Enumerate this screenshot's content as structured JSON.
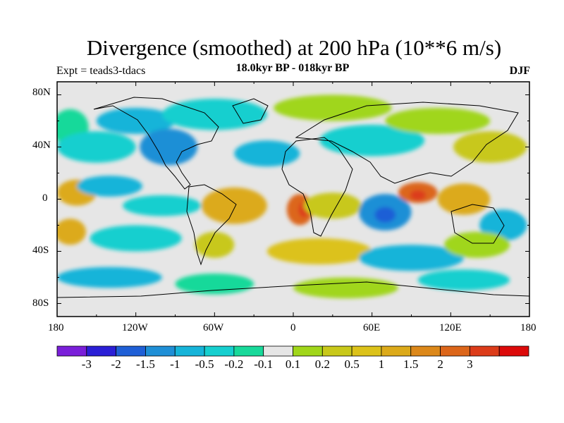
{
  "title": "Divergence (smoothed) at 200 hPa (10**6 m/s)",
  "experiment": "Expt = teads3-tdacs",
  "period": "18.0kyr BP - 018kyr BP",
  "season": "DJF",
  "latitude_labels": [
    "80N",
    "40N",
    "0",
    "40S",
    "80S"
  ],
  "longitude_labels": [
    "180",
    "120W",
    "60W",
    "0",
    "60E",
    "120E",
    "180"
  ],
  "colorbar": {
    "colors": [
      "#7a1fd9",
      "#2b1fd6",
      "#1f5fd6",
      "#1f8fd6",
      "#16b4d9",
      "#16cfcf",
      "#18d99a",
      "#e6e6e6",
      "#a0d61a",
      "#c8c81a",
      "#dcc21a",
      "#dcaa1a",
      "#dc881a",
      "#dc661a",
      "#dc3c1a",
      "#dc0a0a"
    ],
    "labels": [
      "-3",
      "-2",
      "-1.5",
      "-1",
      "-0.5",
      "-0.2",
      "-0.1",
      "0.1",
      "0.2",
      "0.5",
      "1",
      "1.5",
      "2",
      "3"
    ]
  },
  "field": {
    "background_class": "#e6e6e6",
    "blobs": [
      {
        "lon": -170,
        "lat": 55,
        "rx": 14,
        "ry": 14,
        "c": "#18d99a"
      },
      {
        "lon": -150,
        "lat": 40,
        "rx": 30,
        "ry": 12,
        "c": "#16cfcf"
      },
      {
        "lon": -120,
        "lat": 60,
        "rx": 30,
        "ry": 10,
        "c": "#16b4d9"
      },
      {
        "lon": -95,
        "lat": 40,
        "rx": 22,
        "ry": 14,
        "c": "#1f8fd6"
      },
      {
        "lon": -60,
        "lat": 65,
        "rx": 40,
        "ry": 12,
        "c": "#16cfcf"
      },
      {
        "lon": -20,
        "lat": 35,
        "rx": 25,
        "ry": 10,
        "c": "#16b4d9"
      },
      {
        "lon": 30,
        "lat": 70,
        "rx": 45,
        "ry": 10,
        "c": "#a0d61a"
      },
      {
        "lon": 60,
        "lat": 45,
        "rx": 40,
        "ry": 12,
        "c": "#16cfcf"
      },
      {
        "lon": 110,
        "lat": 60,
        "rx": 40,
        "ry": 10,
        "c": "#a0d61a"
      },
      {
        "lon": 150,
        "lat": 40,
        "rx": 28,
        "ry": 12,
        "c": "#c8c81a"
      },
      {
        "lon": -165,
        "lat": 5,
        "rx": 15,
        "ry": 10,
        "c": "#dcaa1a"
      },
      {
        "lon": -140,
        "lat": 10,
        "rx": 25,
        "ry": 8,
        "c": "#16b4d9"
      },
      {
        "lon": -100,
        "lat": -5,
        "rx": 30,
        "ry": 8,
        "c": "#16cfcf"
      },
      {
        "lon": -45,
        "lat": -5,
        "rx": 25,
        "ry": 14,
        "c": "#dcaa1a"
      },
      {
        "lon": 5,
        "lat": -8,
        "rx": 10,
        "ry": 12,
        "c": "#dc661a"
      },
      {
        "lon": 8,
        "lat": -8,
        "rx": 4,
        "ry": 6,
        "c": "#dc3c1a"
      },
      {
        "lon": 30,
        "lat": -5,
        "rx": 22,
        "ry": 10,
        "c": "#c8c81a"
      },
      {
        "lon": 70,
        "lat": -10,
        "rx": 20,
        "ry": 14,
        "c": "#1f8fd6"
      },
      {
        "lon": 70,
        "lat": -12,
        "rx": 8,
        "ry": 6,
        "c": "#1f5fd6"
      },
      {
        "lon": 95,
        "lat": 5,
        "rx": 15,
        "ry": 8,
        "c": "#dc661a"
      },
      {
        "lon": 95,
        "lat": 3,
        "rx": 6,
        "ry": 4,
        "c": "#dc3c1a"
      },
      {
        "lon": 130,
        "lat": 0,
        "rx": 20,
        "ry": 12,
        "c": "#dcaa1a"
      },
      {
        "lon": 160,
        "lat": -20,
        "rx": 18,
        "ry": 12,
        "c": "#16b4d9"
      },
      {
        "lon": -170,
        "lat": -25,
        "rx": 12,
        "ry": 10,
        "c": "#dcaa1a"
      },
      {
        "lon": -120,
        "lat": -30,
        "rx": 35,
        "ry": 10,
        "c": "#16cfcf"
      },
      {
        "lon": -60,
        "lat": -35,
        "rx": 15,
        "ry": 10,
        "c": "#c8c81a"
      },
      {
        "lon": 20,
        "lat": -40,
        "rx": 40,
        "ry": 10,
        "c": "#dcc21a"
      },
      {
        "lon": 90,
        "lat": -45,
        "rx": 40,
        "ry": 10,
        "c": "#16b4d9"
      },
      {
        "lon": 140,
        "lat": -35,
        "rx": 25,
        "ry": 10,
        "c": "#a0d61a"
      },
      {
        "lon": -140,
        "lat": -60,
        "rx": 40,
        "ry": 8,
        "c": "#16b4d9"
      },
      {
        "lon": -60,
        "lat": -65,
        "rx": 30,
        "ry": 8,
        "c": "#18d99a"
      },
      {
        "lon": 40,
        "lat": -68,
        "rx": 40,
        "ry": 8,
        "c": "#a0d61a"
      },
      {
        "lon": 130,
        "lat": -62,
        "rx": 35,
        "ry": 8,
        "c": "#16cfcf"
      }
    ]
  }
}
